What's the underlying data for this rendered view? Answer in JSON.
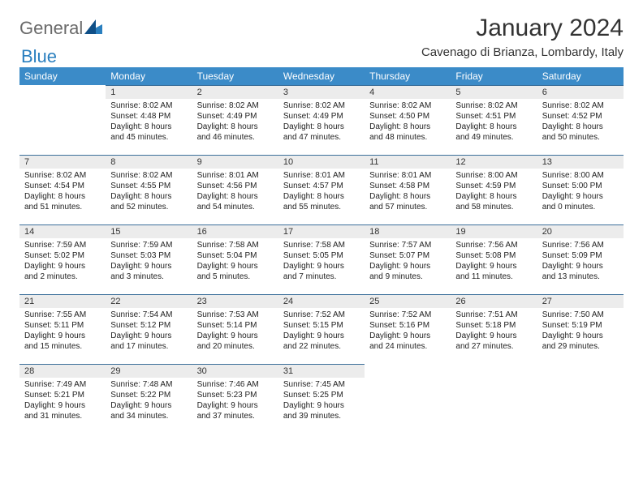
{
  "logo": {
    "part1": "General",
    "part2": "Blue"
  },
  "title": "January 2024",
  "subtitle": "Cavenago di Brianza, Lombardy, Italy",
  "colors": {
    "header_bg": "#3b8bc8",
    "header_text": "#ffffff",
    "daynum_bg": "#ececec",
    "rule": "#3b6f9a",
    "logo_gray": "#6a6a6a",
    "logo_blue": "#2a7fbf"
  },
  "fonts": {
    "title_size": 30,
    "subtitle_size": 15,
    "header_size": 12,
    "cell_size": 10
  },
  "weekdays": [
    "Sunday",
    "Monday",
    "Tuesday",
    "Wednesday",
    "Thursday",
    "Friday",
    "Saturday"
  ],
  "weeks": [
    [
      null,
      {
        "n": "1",
        "sr": "Sunrise: 8:02 AM",
        "ss": "Sunset: 4:48 PM",
        "d1": "Daylight: 8 hours",
        "d2": "and 45 minutes."
      },
      {
        "n": "2",
        "sr": "Sunrise: 8:02 AM",
        "ss": "Sunset: 4:49 PM",
        "d1": "Daylight: 8 hours",
        "d2": "and 46 minutes."
      },
      {
        "n": "3",
        "sr": "Sunrise: 8:02 AM",
        "ss": "Sunset: 4:49 PM",
        "d1": "Daylight: 8 hours",
        "d2": "and 47 minutes."
      },
      {
        "n": "4",
        "sr": "Sunrise: 8:02 AM",
        "ss": "Sunset: 4:50 PM",
        "d1": "Daylight: 8 hours",
        "d2": "and 48 minutes."
      },
      {
        "n": "5",
        "sr": "Sunrise: 8:02 AM",
        "ss": "Sunset: 4:51 PM",
        "d1": "Daylight: 8 hours",
        "d2": "and 49 minutes."
      },
      {
        "n": "6",
        "sr": "Sunrise: 8:02 AM",
        "ss": "Sunset: 4:52 PM",
        "d1": "Daylight: 8 hours",
        "d2": "and 50 minutes."
      }
    ],
    [
      {
        "n": "7",
        "sr": "Sunrise: 8:02 AM",
        "ss": "Sunset: 4:54 PM",
        "d1": "Daylight: 8 hours",
        "d2": "and 51 minutes."
      },
      {
        "n": "8",
        "sr": "Sunrise: 8:02 AM",
        "ss": "Sunset: 4:55 PM",
        "d1": "Daylight: 8 hours",
        "d2": "and 52 minutes."
      },
      {
        "n": "9",
        "sr": "Sunrise: 8:01 AM",
        "ss": "Sunset: 4:56 PM",
        "d1": "Daylight: 8 hours",
        "d2": "and 54 minutes."
      },
      {
        "n": "10",
        "sr": "Sunrise: 8:01 AM",
        "ss": "Sunset: 4:57 PM",
        "d1": "Daylight: 8 hours",
        "d2": "and 55 minutes."
      },
      {
        "n": "11",
        "sr": "Sunrise: 8:01 AM",
        "ss": "Sunset: 4:58 PM",
        "d1": "Daylight: 8 hours",
        "d2": "and 57 minutes."
      },
      {
        "n": "12",
        "sr": "Sunrise: 8:00 AM",
        "ss": "Sunset: 4:59 PM",
        "d1": "Daylight: 8 hours",
        "d2": "and 58 minutes."
      },
      {
        "n": "13",
        "sr": "Sunrise: 8:00 AM",
        "ss": "Sunset: 5:00 PM",
        "d1": "Daylight: 9 hours",
        "d2": "and 0 minutes."
      }
    ],
    [
      {
        "n": "14",
        "sr": "Sunrise: 7:59 AM",
        "ss": "Sunset: 5:02 PM",
        "d1": "Daylight: 9 hours",
        "d2": "and 2 minutes."
      },
      {
        "n": "15",
        "sr": "Sunrise: 7:59 AM",
        "ss": "Sunset: 5:03 PM",
        "d1": "Daylight: 9 hours",
        "d2": "and 3 minutes."
      },
      {
        "n": "16",
        "sr": "Sunrise: 7:58 AM",
        "ss": "Sunset: 5:04 PM",
        "d1": "Daylight: 9 hours",
        "d2": "and 5 minutes."
      },
      {
        "n": "17",
        "sr": "Sunrise: 7:58 AM",
        "ss": "Sunset: 5:05 PM",
        "d1": "Daylight: 9 hours",
        "d2": "and 7 minutes."
      },
      {
        "n": "18",
        "sr": "Sunrise: 7:57 AM",
        "ss": "Sunset: 5:07 PM",
        "d1": "Daylight: 9 hours",
        "d2": "and 9 minutes."
      },
      {
        "n": "19",
        "sr": "Sunrise: 7:56 AM",
        "ss": "Sunset: 5:08 PM",
        "d1": "Daylight: 9 hours",
        "d2": "and 11 minutes."
      },
      {
        "n": "20",
        "sr": "Sunrise: 7:56 AM",
        "ss": "Sunset: 5:09 PM",
        "d1": "Daylight: 9 hours",
        "d2": "and 13 minutes."
      }
    ],
    [
      {
        "n": "21",
        "sr": "Sunrise: 7:55 AM",
        "ss": "Sunset: 5:11 PM",
        "d1": "Daylight: 9 hours",
        "d2": "and 15 minutes."
      },
      {
        "n": "22",
        "sr": "Sunrise: 7:54 AM",
        "ss": "Sunset: 5:12 PM",
        "d1": "Daylight: 9 hours",
        "d2": "and 17 minutes."
      },
      {
        "n": "23",
        "sr": "Sunrise: 7:53 AM",
        "ss": "Sunset: 5:14 PM",
        "d1": "Daylight: 9 hours",
        "d2": "and 20 minutes."
      },
      {
        "n": "24",
        "sr": "Sunrise: 7:52 AM",
        "ss": "Sunset: 5:15 PM",
        "d1": "Daylight: 9 hours",
        "d2": "and 22 minutes."
      },
      {
        "n": "25",
        "sr": "Sunrise: 7:52 AM",
        "ss": "Sunset: 5:16 PM",
        "d1": "Daylight: 9 hours",
        "d2": "and 24 minutes."
      },
      {
        "n": "26",
        "sr": "Sunrise: 7:51 AM",
        "ss": "Sunset: 5:18 PM",
        "d1": "Daylight: 9 hours",
        "d2": "and 27 minutes."
      },
      {
        "n": "27",
        "sr": "Sunrise: 7:50 AM",
        "ss": "Sunset: 5:19 PM",
        "d1": "Daylight: 9 hours",
        "d2": "and 29 minutes."
      }
    ],
    [
      {
        "n": "28",
        "sr": "Sunrise: 7:49 AM",
        "ss": "Sunset: 5:21 PM",
        "d1": "Daylight: 9 hours",
        "d2": "and 31 minutes."
      },
      {
        "n": "29",
        "sr": "Sunrise: 7:48 AM",
        "ss": "Sunset: 5:22 PM",
        "d1": "Daylight: 9 hours",
        "d2": "and 34 minutes."
      },
      {
        "n": "30",
        "sr": "Sunrise: 7:46 AM",
        "ss": "Sunset: 5:23 PM",
        "d1": "Daylight: 9 hours",
        "d2": "and 37 minutes."
      },
      {
        "n": "31",
        "sr": "Sunrise: 7:45 AM",
        "ss": "Sunset: 5:25 PM",
        "d1": "Daylight: 9 hours",
        "d2": "and 39 minutes."
      },
      null,
      null,
      null
    ]
  ]
}
